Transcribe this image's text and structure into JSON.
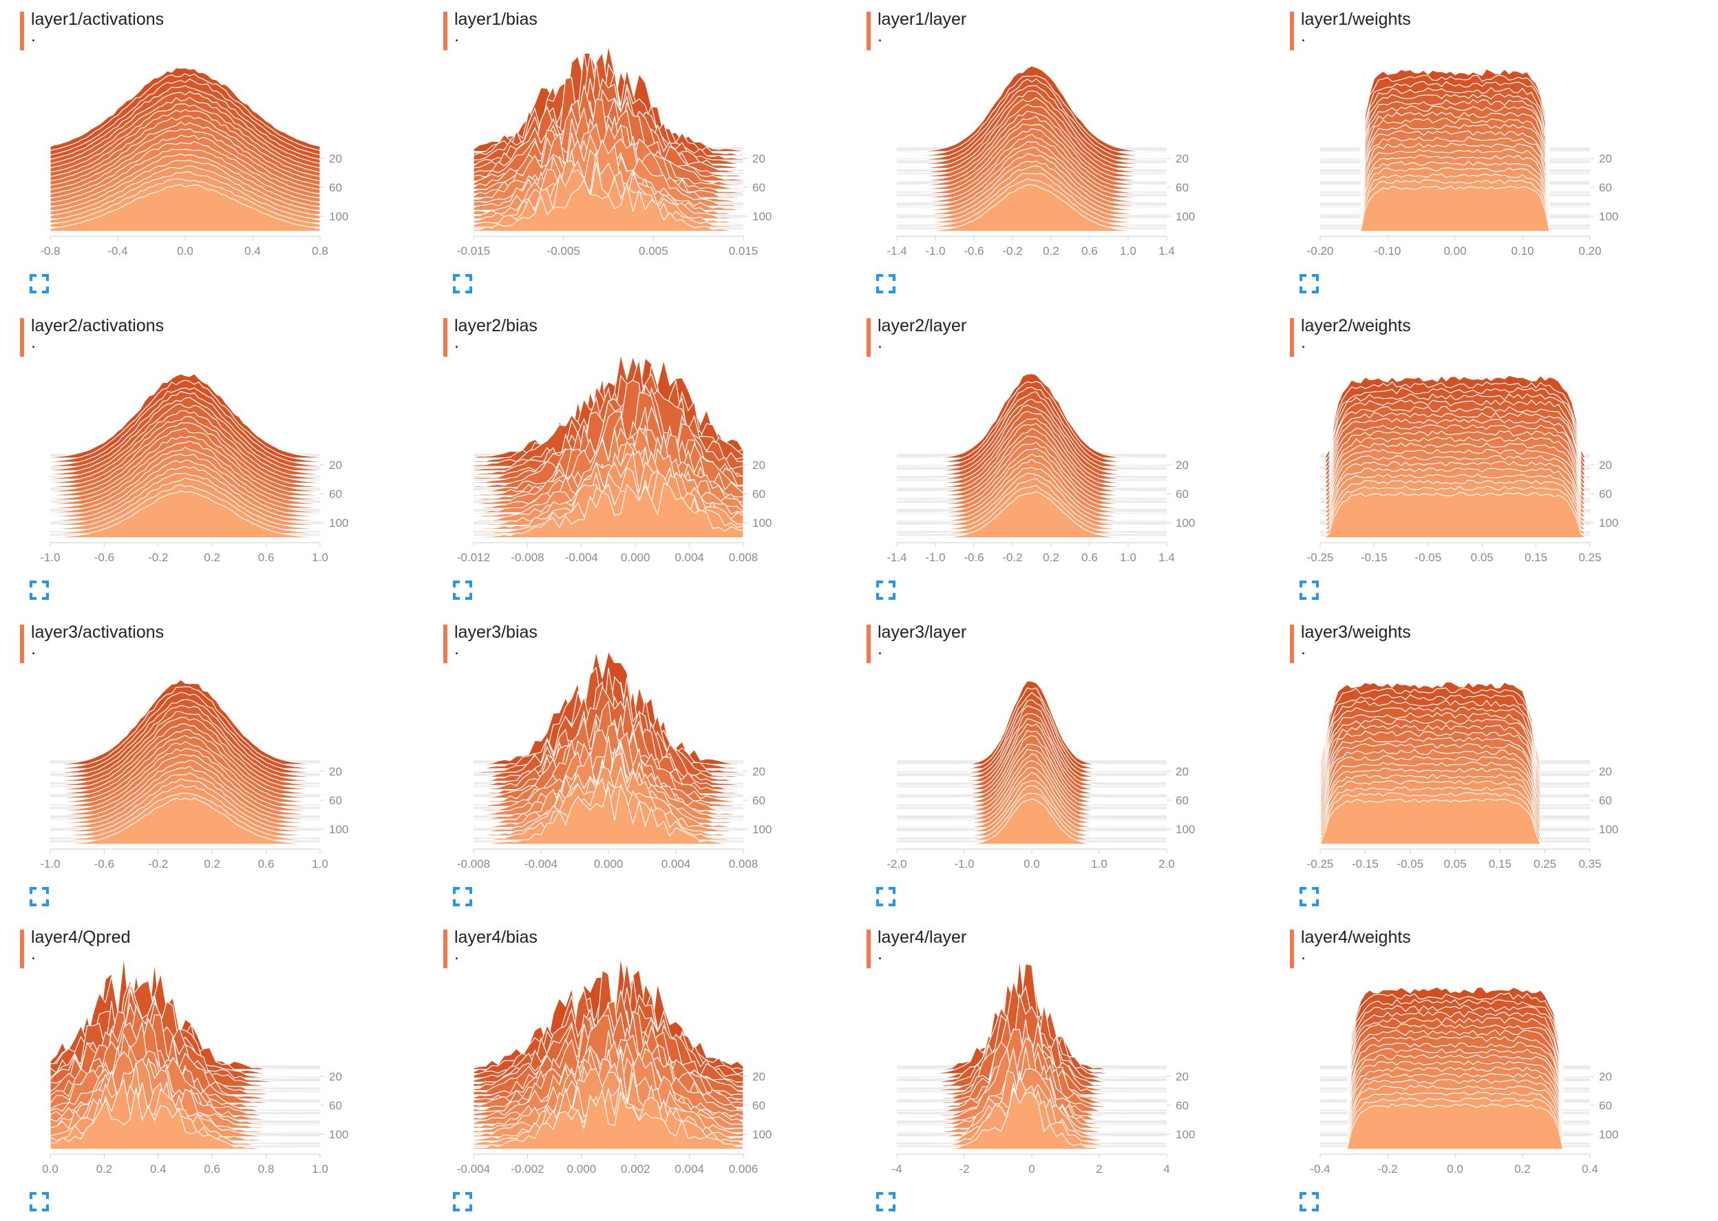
{
  "theme": {
    "accent": "#f1784a",
    "fill_dark": "#d34e20",
    "fill_light": "#fca671",
    "stroke": "#ffffff",
    "band": "#ebebeb",
    "axis_text": "#8a8a8a",
    "expand_icon_color": "#2196f3"
  },
  "cards": [
    {
      "title": "layer1/activations",
      "subtitle": ".",
      "icon": "expand-icon"
    },
    {
      "title": "layer1/bias",
      "subtitle": ".",
      "icon": "expand-icon"
    },
    {
      "title": "layer1/layer",
      "subtitle": ".",
      "icon": "expand-icon"
    },
    {
      "title": "layer1/weights",
      "subtitle": ".",
      "icon": "expand-icon"
    },
    {
      "title": "layer2/activations",
      "subtitle": ".",
      "icon": "expand-icon"
    },
    {
      "title": "layer2/bias",
      "subtitle": ".",
      "icon": "expand-icon"
    },
    {
      "title": "layer2/layer",
      "subtitle": ".",
      "icon": "expand-icon"
    },
    {
      "title": "layer2/weights",
      "subtitle": ".",
      "icon": "expand-icon"
    },
    {
      "title": "layer3/activations",
      "subtitle": ".",
      "icon": "expand-icon"
    },
    {
      "title": "layer3/bias",
      "subtitle": ".",
      "icon": "expand-icon"
    },
    {
      "title": "layer3/layer",
      "subtitle": ".",
      "icon": "expand-icon"
    },
    {
      "title": "layer3/weights",
      "subtitle": ".",
      "icon": "expand-icon"
    },
    {
      "title": "layer4/Qpred",
      "subtitle": ".",
      "icon": "expand-icon"
    },
    {
      "title": "layer4/bias",
      "subtitle": ".",
      "icon": "expand-icon"
    },
    {
      "title": "layer4/layer",
      "subtitle": ".",
      "icon": "expand-icon"
    },
    {
      "title": "layer4/weights",
      "subtitle": ".",
      "icon": "expand-icon"
    }
  ],
  "chart_data": [
    {
      "type": "area",
      "title": "layer1/activations",
      "xlim": [
        -0.8,
        0.8
      ],
      "xticks": [
        "-0.8",
        "-0.4",
        "0.0",
        "0.4",
        "0.8"
      ],
      "yticks": [
        "20",
        "60",
        "100"
      ],
      "steps": [
        0,
        110
      ],
      "shape": "gauss",
      "center": 0.0,
      "spread": 0.34,
      "mode": "smooth"
    },
    {
      "type": "area",
      "title": "layer1/bias",
      "xlim": [
        -0.015,
        0.015
      ],
      "xticks": [
        "-0.015",
        "-0.005",
        "0.005",
        "0.015"
      ],
      "yticks": [
        "20",
        "60",
        "100"
      ],
      "steps": [
        0,
        110
      ],
      "shape": "gauss",
      "center": -0.0015,
      "spread": 0.0055,
      "mode": "spiky"
    },
    {
      "type": "area",
      "title": "layer1/layer",
      "xlim": [
        -1.4,
        1.4
      ],
      "xticks": [
        "-1.4",
        "-1.0",
        "-0.6",
        "-0.2",
        "0.2",
        "0.6",
        "1.0",
        "1.4"
      ],
      "yticks": [
        "20",
        "60",
        "100"
      ],
      "steps": [
        0,
        110
      ],
      "shape": "gauss",
      "center": 0.0,
      "spread": 0.36,
      "mode": "smooth"
    },
    {
      "type": "area",
      "title": "layer1/weights",
      "xlim": [
        -0.2,
        0.2
      ],
      "xticks": [
        "-0.20",
        "-0.10",
        "0.00",
        "0.10",
        "0.20"
      ],
      "yticks": [
        "20",
        "60",
        "100"
      ],
      "steps": [
        0,
        110
      ],
      "shape": "flat",
      "center": 0.0,
      "spread": 0.14,
      "mode": "flat"
    },
    {
      "type": "area",
      "title": "layer2/activations",
      "xlim": [
        -1.0,
        1.0
      ],
      "xticks": [
        "-1.0",
        "-0.6",
        "-0.2",
        "0.2",
        "0.6",
        "1.0"
      ],
      "yticks": [
        "20",
        "60",
        "100"
      ],
      "steps": [
        0,
        110
      ],
      "shape": "gauss",
      "center": 0.0,
      "spread": 0.33,
      "mode": "smooth"
    },
    {
      "type": "area",
      "title": "layer2/bias",
      "xlim": [
        -0.012,
        0.008
      ],
      "xticks": [
        "-0.012",
        "-0.008",
        "-0.004",
        "0.000",
        "0.004",
        "0.008"
      ],
      "yticks": [
        "20",
        "60",
        "100"
      ],
      "steps": [
        0,
        110
      ],
      "shape": "gauss",
      "center": 0.0,
      "spread": 0.004,
      "mode": "spiky"
    },
    {
      "type": "area",
      "title": "layer2/layer",
      "xlim": [
        -1.4,
        1.4
      ],
      "xticks": [
        "-1.4",
        "-1.0",
        "-0.6",
        "-0.2",
        "0.2",
        "0.6",
        "1.0",
        "1.4"
      ],
      "yticks": [
        "20",
        "60",
        "100"
      ],
      "steps": [
        0,
        110
      ],
      "shape": "gauss",
      "center": 0.0,
      "spread": 0.3,
      "mode": "smooth"
    },
    {
      "type": "area",
      "title": "layer2/weights",
      "xlim": [
        -0.25,
        0.25
      ],
      "xticks": [
        "-0.25",
        "-0.15",
        "-0.05",
        "0.05",
        "0.15",
        "0.25"
      ],
      "yticks": [
        "20",
        "60",
        "100"
      ],
      "steps": [
        0,
        110
      ],
      "shape": "flat",
      "center": 0.0,
      "spread": 0.235,
      "mode": "flat"
    },
    {
      "type": "area",
      "title": "layer3/activations",
      "xlim": [
        -1.0,
        1.0
      ],
      "xticks": [
        "-1.0",
        "-0.6",
        "-0.2",
        "0.2",
        "0.6",
        "1.0"
      ],
      "yticks": [
        "20",
        "60",
        "100"
      ],
      "steps": [
        0,
        110
      ],
      "shape": "gauss",
      "center": 0.0,
      "spread": 0.3,
      "mode": "smooth"
    },
    {
      "type": "area",
      "title": "layer3/bias",
      "xlim": [
        -0.008,
        0.008
      ],
      "xticks": [
        "-0.008",
        "-0.004",
        "0.000",
        "0.004",
        "0.008"
      ],
      "yticks": [
        "20",
        "60",
        "100"
      ],
      "steps": [
        0,
        110
      ],
      "shape": "gauss",
      "center": 0.0,
      "spread": 0.0025,
      "mode": "spiky"
    },
    {
      "type": "area",
      "title": "layer3/layer",
      "xlim": [
        -2.0,
        2.0
      ],
      "xticks": [
        "-2.0",
        "-1.0",
        "0.0",
        "1.0",
        "2.0"
      ],
      "yticks": [
        "20",
        "60",
        "100"
      ],
      "steps": [
        0,
        110
      ],
      "shape": "gauss",
      "center": 0.0,
      "spread": 0.3,
      "mode": "smooth"
    },
    {
      "type": "area",
      "title": "layer3/weights",
      "xlim": [
        -0.25,
        0.35
      ],
      "xticks": [
        "-0.25",
        "-0.15",
        "-0.05",
        "0.05",
        "0.15",
        "0.25",
        "0.35"
      ],
      "yticks": [
        "20",
        "60",
        "100"
      ],
      "steps": [
        0,
        110
      ],
      "shape": "flat",
      "center": -0.005,
      "spread": 0.24,
      "mode": "flat"
    },
    {
      "type": "area",
      "title": "layer4/Qpred",
      "xlim": [
        0.0,
        1.0
      ],
      "xticks": [
        "0.0",
        "0.2",
        "0.4",
        "0.6",
        "0.8",
        "1.0"
      ],
      "yticks": [
        "20",
        "60",
        "100"
      ],
      "steps": [
        0,
        110
      ],
      "shape": "gauss",
      "center": 0.32,
      "spread": 0.16,
      "mode": "spiky"
    },
    {
      "type": "area",
      "title": "layer4/bias",
      "xlim": [
        -0.004,
        0.006
      ],
      "xticks": [
        "-0.004",
        "-0.002",
        "0.000",
        "0.002",
        "0.004",
        "0.006"
      ],
      "yticks": [
        "20",
        "60",
        "100"
      ],
      "steps": [
        0,
        110
      ],
      "shape": "gauss",
      "center": 0.0012,
      "spread": 0.002,
      "mode": "spiky"
    },
    {
      "type": "area",
      "title": "layer4/layer",
      "xlim": [
        -4,
        5
      ],
      "xticks": [
        "-4",
        "-2",
        "0",
        "2",
        "4"
      ],
      "yticks": [
        "20",
        "60",
        "100"
      ],
      "steps": [
        0,
        110
      ],
      "shape": "gauss",
      "center": 0.2,
      "spread": 0.9,
      "mode": "spiky"
    },
    {
      "type": "area",
      "title": "layer4/weights",
      "xlim": [
        -0.4,
        0.4
      ],
      "xticks": [
        "-0.4",
        "-0.2",
        "0.0",
        "0.2",
        "0.4"
      ],
      "yticks": [
        "20",
        "60",
        "100"
      ],
      "steps": [
        0,
        110
      ],
      "shape": "flat",
      "center": 0.0,
      "spread": 0.32,
      "mode": "flat"
    }
  ]
}
